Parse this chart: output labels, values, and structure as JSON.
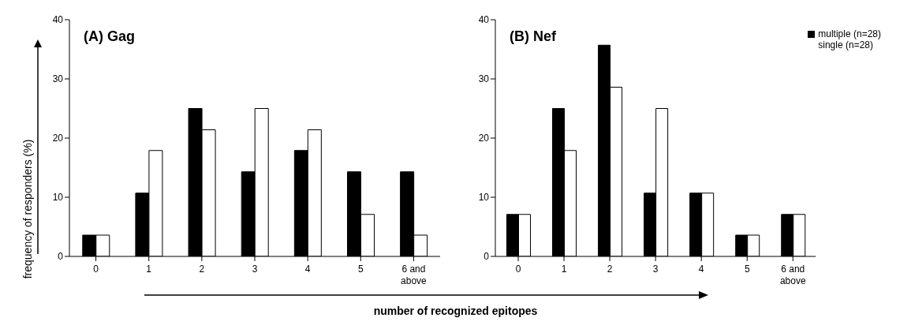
{
  "chart_data": [
    {
      "type": "bar",
      "title": "(A) Gag",
      "ylabel": "frequency of responders (%)",
      "xlabel": "number of recognized epitopes",
      "categories": [
        "0",
        "1",
        "2",
        "3",
        "4",
        "5",
        "6 and above"
      ],
      "ylim": [
        0,
        40
      ],
      "yticks": [
        0,
        10,
        20,
        30,
        40
      ],
      "series": [
        {
          "color": "#000000",
          "values": [
            3.6,
            10.7,
            25,
            14.3,
            17.9,
            14.3,
            14.3
          ]
        },
        {
          "color": "#ffffff",
          "values": [
            3.6,
            17.9,
            21.4,
            25,
            21.4,
            7.1,
            3.6
          ]
        }
      ]
    },
    {
      "type": "bar",
      "title": "(B) Nef",
      "categories": [
        "0",
        "1",
        "2",
        "3",
        "4",
        "5",
        "6 and above"
      ],
      "ylim": [
        0,
        40
      ],
      "yticks": [
        0,
        10,
        20,
        30,
        40
      ],
      "legend": "top right",
      "series": [
        {
          "name": "multiple (n=28)",
          "color": "#000000",
          "values": [
            7.1,
            25,
            35.7,
            10.7,
            10.7,
            3.6,
            7.1
          ]
        },
        {
          "name": "single (n=28)",
          "color": "#ffffff",
          "values": [
            7.1,
            17.9,
            28.6,
            25,
            10.7,
            3.6,
            7.1
          ]
        }
      ]
    }
  ]
}
